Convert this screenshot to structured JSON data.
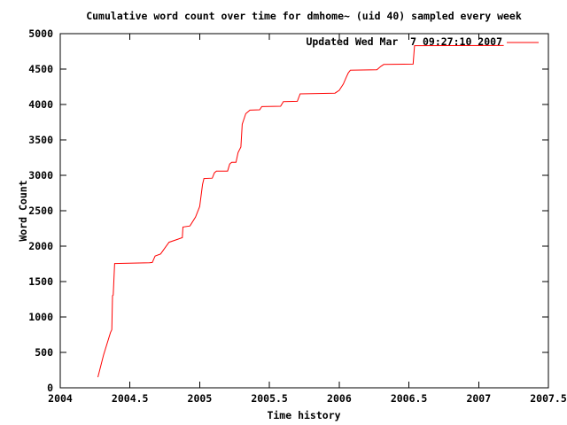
{
  "chart_data": {
    "type": "line",
    "title": "Cumulative word count over time for dmhome~ (uid 40) sampled every week",
    "xlabel": "Time history",
    "ylabel": "Word Count",
    "xlim": [
      2004,
      2007.5
    ],
    "ylim": [
      0,
      5000
    ],
    "grid": false,
    "legend_position": "top-right-inside",
    "x_ticks": {
      "values": [
        2004,
        2004.5,
        2005,
        2005.5,
        2006,
        2006.5,
        2007,
        2007.5
      ],
      "labels": [
        "2004",
        "2004.5",
        "2005",
        "2005.5",
        "2006",
        "2006.5",
        "2007",
        "2007.5"
      ]
    },
    "y_ticks": {
      "values": [
        0,
        500,
        1000,
        1500,
        2000,
        2500,
        3000,
        3500,
        4000,
        4500,
        5000
      ],
      "labels": [
        "0",
        "500",
        "1000",
        "1500",
        "2000",
        "2500",
        "3000",
        "3500",
        "4000",
        "4500",
        "5000"
      ]
    },
    "colors": {
      "background": "#ffffff",
      "axis": "#000000",
      "series": "#ff0000"
    },
    "series": [
      {
        "name": "Updated Wed Mar  7 09:27:10 2007",
        "color": "#ff0000",
        "points": [
          [
            2004.27,
            150
          ],
          [
            2004.31,
            460
          ],
          [
            2004.36,
            780
          ],
          [
            2004.37,
            820
          ],
          [
            2004.375,
            1300
          ],
          [
            2004.38,
            1310
          ],
          [
            2004.39,
            1755
          ],
          [
            2004.64,
            1765
          ],
          [
            2004.66,
            1770
          ],
          [
            2004.68,
            1860
          ],
          [
            2004.72,
            1890
          ],
          [
            2004.78,
            2055
          ],
          [
            2004.84,
            2095
          ],
          [
            2004.875,
            2120
          ],
          [
            2004.88,
            2270
          ],
          [
            2004.93,
            2285
          ],
          [
            2004.97,
            2410
          ],
          [
            2005.0,
            2560
          ],
          [
            2005.02,
            2870
          ],
          [
            2005.03,
            2955
          ],
          [
            2005.09,
            2960
          ],
          [
            2005.105,
            3035
          ],
          [
            2005.12,
            3060
          ],
          [
            2005.2,
            3060
          ],
          [
            2005.215,
            3160
          ],
          [
            2005.23,
            3185
          ],
          [
            2005.26,
            3185
          ],
          [
            2005.275,
            3320
          ],
          [
            2005.295,
            3400
          ],
          [
            2005.305,
            3720
          ],
          [
            2005.33,
            3870
          ],
          [
            2005.36,
            3920
          ],
          [
            2005.43,
            3925
          ],
          [
            2005.445,
            3970
          ],
          [
            2005.58,
            3975
          ],
          [
            2005.6,
            4040
          ],
          [
            2005.7,
            4045
          ],
          [
            2005.72,
            4150
          ],
          [
            2005.97,
            4160
          ],
          [
            2006.0,
            4200
          ],
          [
            2006.03,
            4290
          ],
          [
            2006.05,
            4380
          ],
          [
            2006.065,
            4445
          ],
          [
            2006.08,
            4485
          ],
          [
            2006.27,
            4490
          ],
          [
            2006.3,
            4540
          ],
          [
            2006.32,
            4565
          ],
          [
            2006.53,
            4570
          ],
          [
            2006.54,
            4830
          ],
          [
            2007.18,
            4832
          ]
        ]
      }
    ]
  }
}
